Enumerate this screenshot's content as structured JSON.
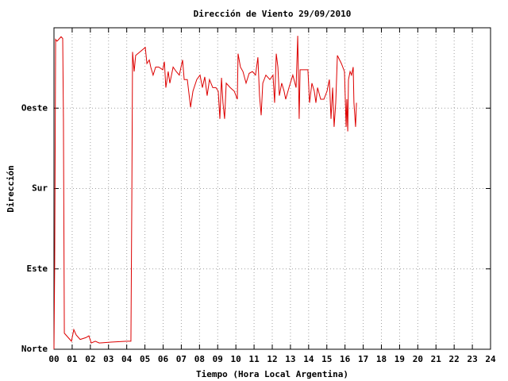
{
  "chart_data": {
    "type": "line",
    "title": "Dirección de Viento 29/09/2010",
    "x_label": "Tiempo (Hora Local Argentina)",
    "y_label": "Dirección",
    "color": "#dd0000",
    "grid": true,
    "xlim": [
      0,
      24
    ],
    "ylim": [
      0,
      360
    ],
    "xticks": [
      {
        "value": 0,
        "label": "00"
      },
      {
        "value": 1,
        "label": "01"
      },
      {
        "value": 2,
        "label": "02"
      },
      {
        "value": 3,
        "label": "03"
      },
      {
        "value": 4,
        "label": "04"
      },
      {
        "value": 5,
        "label": "05"
      },
      {
        "value": 6,
        "label": "06"
      },
      {
        "value": 7,
        "label": "07"
      },
      {
        "value": 8,
        "label": "08"
      },
      {
        "value": 9,
        "label": "09"
      },
      {
        "value": 10,
        "label": "10"
      },
      {
        "value": 11,
        "label": "11"
      },
      {
        "value": 12,
        "label": "12"
      },
      {
        "value": 13,
        "label": "13"
      },
      {
        "value": 14,
        "label": "14"
      },
      {
        "value": 15,
        "label": "15"
      },
      {
        "value": 16,
        "label": "16"
      },
      {
        "value": 17,
        "label": "17"
      },
      {
        "value": 18,
        "label": "18"
      },
      {
        "value": 19,
        "label": "19"
      },
      {
        "value": 20,
        "label": "20"
      },
      {
        "value": 21,
        "label": "21"
      },
      {
        "value": 22,
        "label": "22"
      },
      {
        "value": 23,
        "label": "23"
      },
      {
        "value": 24,
        "label": "24"
      }
    ],
    "yticks": [
      {
        "value": 0,
        "label": "Norte"
      },
      {
        "value": 90,
        "label": "Este"
      },
      {
        "value": 180,
        "label": "Sur"
      },
      {
        "value": 270,
        "label": "Oeste"
      }
    ],
    "x": [
      0,
      0.04,
      0.09,
      0.17,
      0.26,
      0.39,
      0.48,
      0.52,
      0.57,
      0.96,
      1.09,
      1.22,
      1.44,
      1.75,
      1.92,
      2.05,
      2.27,
      2.49,
      3.14,
      4.01,
      4.23,
      4.28,
      4.32,
      4.41,
      4.49,
      5.02,
      5.11,
      5.24,
      5.32,
      5.45,
      5.59,
      5.76,
      5.98,
      6.07,
      6.15,
      6.28,
      6.37,
      6.55,
      6.72,
      6.89,
      7.07,
      7.16,
      7.33,
      7.51,
      7.64,
      7.85,
      8.03,
      8.16,
      8.29,
      8.42,
      8.55,
      8.73,
      8.9,
      9.03,
      9.12,
      9.21,
      9.29,
      9.38,
      9.47,
      9.69,
      9.91,
      10.08,
      10.12,
      10.25,
      10.39,
      10.56,
      10.73,
      10.91,
      11.08,
      11.21,
      11.3,
      11.39,
      11.48,
      11.65,
      11.87,
      12.04,
      12.13,
      12.22,
      12.31,
      12.39,
      12.52,
      12.65,
      12.74,
      12.92,
      13.13,
      13.31,
      13.4,
      13.48,
      13.53,
      13.96,
      14.05,
      14.18,
      14.31,
      14.4,
      14.49,
      14.66,
      14.84,
      15.01,
      15.14,
      15.23,
      15.32,
      15.4,
      15.49,
      15.58,
      15.8,
      15.97,
      16.06,
      16.1,
      16.15,
      16.19,
      16.28,
      16.36,
      16.45,
      16.49,
      16.58,
      16.63
    ],
    "values": [
      0,
      98,
      347,
      345,
      347,
      350,
      348,
      258,
      18,
      9,
      22,
      16,
      11,
      13,
      15,
      7,
      9,
      7,
      8,
      9,
      9,
      169,
      333,
      311,
      329,
      338,
      320,
      324,
      316,
      307,
      316,
      316,
      313,
      322,
      293,
      311,
      298,
      316,
      311,
      307,
      324,
      302,
      302,
      271,
      289,
      302,
      307,
      293,
      305,
      284,
      302,
      293,
      293,
      289,
      258,
      304,
      276,
      258,
      298,
      293,
      289,
      280,
      331,
      316,
      311,
      298,
      309,
      311,
      307,
      327,
      284,
      262,
      298,
      307,
      302,
      307,
      276,
      331,
      316,
      284,
      298,
      289,
      280,
      293,
      307,
      293,
      351,
      258,
      313,
      313,
      276,
      298,
      289,
      276,
      293,
      280,
      280,
      289,
      302,
      258,
      293,
      249,
      276,
      329,
      320,
      311,
      249,
      280,
      244,
      302,
      311,
      307,
      316,
      276,
      249,
      276
    ]
  }
}
